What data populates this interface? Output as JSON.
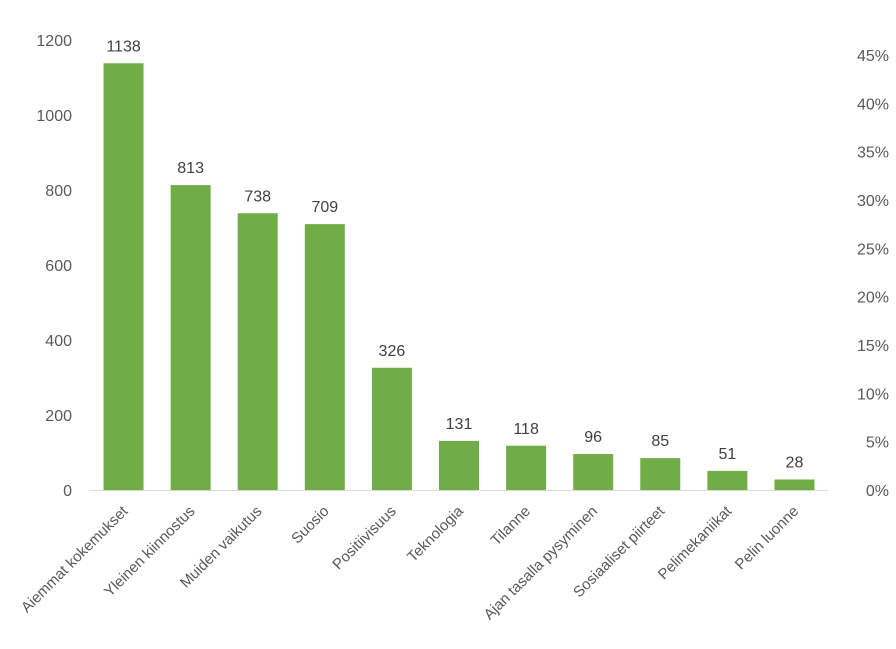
{
  "colors": {
    "bar": "#70ad47",
    "axis": "#d9d9d9",
    "text": "#595959",
    "label": "#404040"
  },
  "chart_data": {
    "type": "bar",
    "categories": [
      "Aiemmat kokemukset",
      "Yleinen kiinnostus",
      "Muiden vaikutus",
      "Suosio",
      "Positiivisuus",
      "Teknologia",
      "Tilanne",
      "Ajan tasalla pysyminen",
      "Sosiaaliset piirteet",
      "Pelimekaniikat",
      "Pelin luonne"
    ],
    "values": [
      1138,
      813,
      738,
      709,
      326,
      131,
      118,
      96,
      85,
      51,
      28
    ],
    "data_labels": [
      "1138",
      "813",
      "738",
      "709",
      "326",
      "131",
      "118",
      "96",
      "85",
      "51",
      "28"
    ],
    "ylim": [
      0,
      1200
    ],
    "yticks": [
      0,
      200,
      400,
      600,
      800,
      1000,
      1200
    ],
    "ytick_labels": [
      "0",
      "200",
      "400",
      "600",
      "800",
      "1000",
      "1200"
    ],
    "y2lim": [
      0,
      0.45
    ],
    "y2ticks": [
      0,
      0.05,
      0.1,
      0.15,
      0.2,
      0.25,
      0.3,
      0.35,
      0.4,
      0.45
    ],
    "y2tick_labels": [
      "0%",
      "5%",
      "10%",
      "15%",
      "20%",
      "25%",
      "30%",
      "35%",
      "40%",
      "45%"
    ],
    "grid": false,
    "legend": "none"
  }
}
